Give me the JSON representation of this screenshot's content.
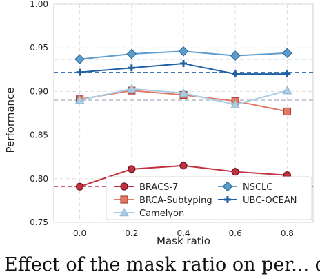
{
  "chart_data": {
    "type": "line",
    "xlabel": "Mask ratio",
    "ylabel": "Performance",
    "x": [
      0.0,
      0.2,
      0.4,
      0.6,
      0.8
    ],
    "x_tick_labels": [
      "0.0",
      "0.2",
      "0.4",
      "0.6",
      "0.8"
    ],
    "xlim": [
      -0.1,
      0.9
    ],
    "ylim": [
      0.75,
      1.0
    ],
    "y_ticks": [
      0.75,
      0.8,
      0.85,
      0.9,
      0.95,
      1.0
    ],
    "y_tick_labels": [
      "0.75",
      "0.80",
      "0.85",
      "0.90",
      "0.95",
      "1.00"
    ],
    "grid": true,
    "legend_placement": "bottom-right",
    "series": [
      {
        "name": "BRACS-7",
        "values": [
          0.791,
          0.811,
          0.815,
          0.808,
          0.804
        ],
        "baseline": 0.791,
        "color": "#c0303f",
        "marker": "circle"
      },
      {
        "name": "BRCA-Subtyping",
        "values": [
          0.891,
          0.901,
          0.896,
          0.889,
          0.877
        ],
        "baseline": 0.89,
        "color": "#e07a63",
        "marker": "square"
      },
      {
        "name": "Camelyon",
        "values": [
          0.89,
          0.903,
          0.898,
          0.885,
          0.901
        ],
        "baseline": 0.89,
        "color": "#a9cde6",
        "marker": "triangle"
      },
      {
        "name": "NSCLC",
        "values": [
          0.937,
          0.943,
          0.946,
          0.941,
          0.944
        ],
        "baseline": 0.937,
        "color": "#5e9ccc",
        "marker": "diamond"
      },
      {
        "name": "UBC-OCEAN",
        "values": [
          0.922,
          0.927,
          0.932,
          0.92,
          0.92
        ],
        "baseline": 0.922,
        "color": "#1f5fa3",
        "marker": "plus"
      }
    ]
  },
  "caption": "Effect of the mask ratio on per... di"
}
